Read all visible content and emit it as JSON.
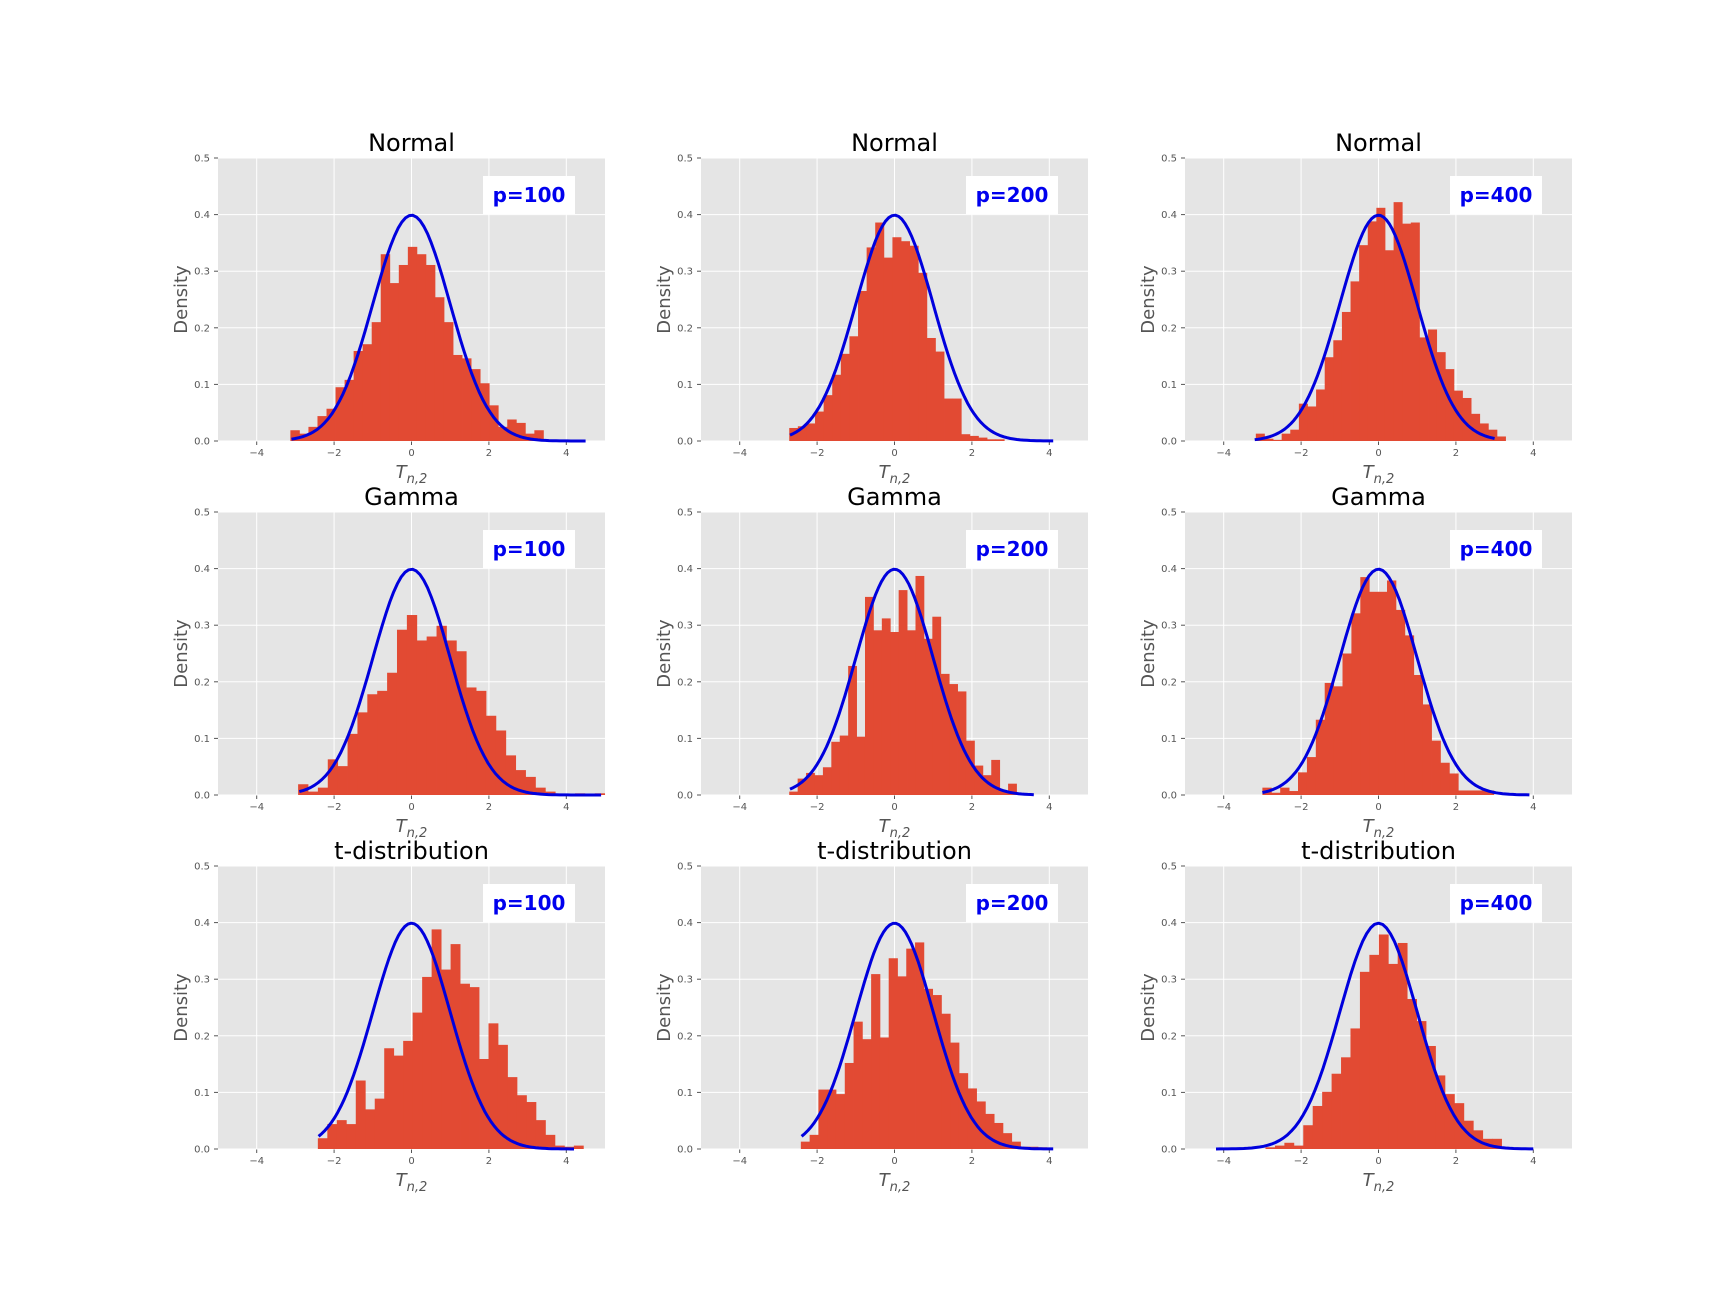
{
  "figure": {
    "background": "#ffffff",
    "panel_background": "#e5e5e5",
    "grid_color": "#ffffff",
    "bar_color": "#e24a33",
    "curve_color": "#0000dd",
    "annotation_color": "#0000ee"
  },
  "chart_data": [
    {
      "type": "bar",
      "title": "Normal",
      "annotation": "p=100",
      "xlabel": "T_{n,2}",
      "ylabel": "Density",
      "xlim": [
        -5,
        5
      ],
      "ylim": [
        0,
        0.5
      ],
      "xticks": [
        "−4",
        "−2",
        "0",
        "2",
        "4"
      ],
      "yticks": [
        "0.0",
        "0.1",
        "0.2",
        "0.3",
        "0.4",
        "0.5"
      ],
      "bins": {
        "start": -3.13,
        "width": 0.2335,
        "values": [
          0.019,
          0.013,
          0.025,
          0.044,
          0.057,
          0.095,
          0.108,
          0.159,
          0.171,
          0.21,
          0.33,
          0.279,
          0.311,
          0.343,
          0.33,
          0.311,
          0.254,
          0.21,
          0.152,
          0.146,
          0.127,
          0.102,
          0.063,
          0.025,
          0.038,
          0.032,
          0.013,
          0.019
        ]
      },
      "curve": {
        "x_start": -3.1,
        "x_end": 4.5,
        "mean": 0,
        "sd": 1
      }
    },
    {
      "type": "bar",
      "title": "Normal",
      "annotation": "p=200",
      "xlabel": "T_{n,2}",
      "ylabel": "Density",
      "xlim": [
        -5,
        5
      ],
      "ylim": [
        0,
        0.5
      ],
      "xticks": [
        "−4",
        "−2",
        "0",
        "2",
        "4"
      ],
      "yticks": [
        "0.0",
        "0.1",
        "0.2",
        "0.3",
        "0.4",
        "0.5"
      ],
      "bins": {
        "start": -2.72,
        "width": 0.2222,
        "values": [
          0.023,
          0.026,
          0.031,
          0.052,
          0.081,
          0.117,
          0.154,
          0.185,
          0.265,
          0.342,
          0.386,
          0.324,
          0.36,
          0.353,
          0.345,
          0.297,
          0.182,
          0.158,
          0.075,
          0.075,
          0.012,
          0.009,
          0.006,
          0.003,
          0.003
        ]
      },
      "curve": {
        "x_start": -2.7,
        "x_end": 4.1,
        "mean": 0,
        "sd": 1
      }
    },
    {
      "type": "bar",
      "title": "Normal",
      "annotation": "p=400",
      "xlabel": "T_{n,2}",
      "ylabel": "Density",
      "xlim": [
        -5,
        5
      ],
      "ylim": [
        0,
        0.5
      ],
      "xticks": [
        "−4",
        "−2",
        "0",
        "2",
        "4"
      ],
      "yticks": [
        "0.0",
        "0.1",
        "0.2",
        "0.3",
        "0.4",
        "0.5"
      ],
      "bins": {
        "start": -3.17,
        "width": 0.2225,
        "values": [
          0.013,
          0.004,
          0.002,
          0.013,
          0.02,
          0.066,
          0.061,
          0.091,
          0.148,
          0.178,
          0.228,
          0.282,
          0.346,
          0.388,
          0.412,
          0.337,
          0.422,
          0.384,
          0.386,
          0.183,
          0.197,
          0.157,
          0.127,
          0.089,
          0.076,
          0.048,
          0.031,
          0.02,
          0.008
        ]
      },
      "curve": {
        "x_start": -3.2,
        "x_end": 3.0,
        "mean": 0,
        "sd": 1
      }
    },
    {
      "type": "bar",
      "title": "Gamma",
      "annotation": "p=100",
      "xlabel": "T_{n,2}",
      "ylabel": "Density",
      "xlim": [
        -5,
        5
      ],
      "ylim": [
        0,
        0.5
      ],
      "xticks": [
        "−4",
        "−2",
        "0",
        "2",
        "4"
      ],
      "yticks": [
        "0.0",
        "0.1",
        "0.2",
        "0.3",
        "0.4",
        "0.5"
      ],
      "bins": {
        "start": -2.93,
        "width": 0.2555,
        "values": [
          0.019,
          0.006,
          0.013,
          0.063,
          0.051,
          0.108,
          0.146,
          0.178,
          0.184,
          0.216,
          0.292,
          0.318,
          0.273,
          0.28,
          0.299,
          0.273,
          0.254,
          0.19,
          0.184,
          0.14,
          0.114,
          0.07,
          0.044,
          0.032,
          0.013,
          0.006,
          0.002,
          0.002,
          0.003,
          0.002,
          0.003
        ]
      },
      "curve": {
        "x_start": -2.9,
        "x_end": 4.9,
        "mean": 0,
        "sd": 1
      }
    },
    {
      "type": "bar",
      "title": "Gamma",
      "annotation": "p=200",
      "xlabel": "T_{n,2}",
      "ylabel": "Density",
      "xlim": [
        -5,
        5
      ],
      "ylim": [
        0,
        0.5
      ],
      "xticks": [
        "−4",
        "−2",
        "0",
        "2",
        "4"
      ],
      "yticks": [
        "0.0",
        "0.1",
        "0.2",
        "0.3",
        "0.4",
        "0.5"
      ],
      "bins": {
        "start": -2.72,
        "width": 0.2175,
        "values": [
          0.006,
          0.029,
          0.039,
          0.035,
          0.049,
          0.094,
          0.105,
          0.228,
          0.103,
          0.35,
          0.291,
          0.312,
          0.288,
          0.362,
          0.291,
          0.387,
          0.276,
          0.315,
          0.214,
          0.196,
          0.183,
          0.096,
          0.052,
          0.035,
          0.062,
          0.007,
          0.02
        ]
      },
      "curve": {
        "x_start": -2.7,
        "x_end": 3.6,
        "mean": 0,
        "sd": 1
      }
    },
    {
      "type": "bar",
      "title": "Gamma",
      "annotation": "p=400",
      "xlabel": "T_{n,2}",
      "ylabel": "Density",
      "xlim": [
        -5,
        5
      ],
      "ylim": [
        0,
        0.5
      ],
      "xticks": [
        "−4",
        "−2",
        "0",
        "2",
        "4"
      ],
      "yticks": [
        "0.0",
        "0.1",
        "0.2",
        "0.3",
        "0.4",
        "0.5"
      ],
      "bins": {
        "start": -3.0,
        "width": 0.23,
        "values": [
          0.013,
          0.004,
          0.013,
          0.007,
          0.04,
          0.067,
          0.133,
          0.198,
          0.192,
          0.25,
          0.321,
          0.385,
          0.359,
          0.359,
          0.379,
          0.327,
          0.282,
          0.212,
          0.16,
          0.096,
          0.057,
          0.038,
          0.008,
          0.008,
          0.008,
          0.008
        ]
      },
      "curve": {
        "x_start": -3.0,
        "x_end": 3.9,
        "mean": 0,
        "sd": 1
      }
    },
    {
      "type": "bar",
      "title": "t-distribution",
      "annotation": "p=100",
      "xlabel": "T_{n,2}",
      "ylabel": "Density",
      "xlim": [
        -5,
        5
      ],
      "ylim": [
        0,
        0.5
      ],
      "xticks": [
        "−4",
        "−2",
        "0",
        "2",
        "4"
      ],
      "yticks": [
        "0.0",
        "0.1",
        "0.2",
        "0.3",
        "0.4",
        "0.5"
      ],
      "bins": {
        "start": -2.42,
        "width": 0.245,
        "values": [
          0.019,
          0.044,
          0.051,
          0.044,
          0.121,
          0.07,
          0.089,
          0.178,
          0.165,
          0.191,
          0.241,
          0.304,
          0.388,
          0.317,
          0.362,
          0.292,
          0.286,
          0.159,
          0.222,
          0.184,
          0.127,
          0.095,
          0.083,
          0.051,
          0.025,
          0.006,
          0.004,
          0.006
        ]
      },
      "curve": {
        "x_start": -2.4,
        "x_end": 4.2,
        "mean": 0,
        "sd": 1
      }
    },
    {
      "type": "bar",
      "title": "t-distribution",
      "annotation": "p=200",
      "xlabel": "T_{n,2}",
      "ylabel": "Density",
      "xlim": [
        -5,
        5
      ],
      "ylim": [
        0,
        0.5
      ],
      "xticks": [
        "−4",
        "−2",
        "0",
        "2",
        "4"
      ],
      "yticks": [
        "0.0",
        "0.1",
        "0.2",
        "0.3",
        "0.4",
        "0.5"
      ],
      "bins": {
        "start": -2.42,
        "width": 0.227,
        "values": [
          0.013,
          0.025,
          0.105,
          0.105,
          0.097,
          0.152,
          0.225,
          0.194,
          0.309,
          0.197,
          0.337,
          0.305,
          0.354,
          0.365,
          0.283,
          0.272,
          0.239,
          0.188,
          0.134,
          0.107,
          0.084,
          0.062,
          0.046,
          0.028,
          0.013,
          0.004,
          0.004,
          0.003
        ]
      },
      "curve": {
        "x_start": -2.4,
        "x_end": 4.1,
        "mean": 0,
        "sd": 1
      }
    },
    {
      "type": "bar",
      "title": "t-distribution",
      "annotation": "p=400",
      "xlabel": "T_{n,2}",
      "ylabel": "Density",
      "xlim": [
        -5,
        5
      ],
      "ylim": [
        0,
        0.5
      ],
      "xticks": [
        "−4",
        "−2",
        "0",
        "2",
        "4"
      ],
      "yticks": [
        "0.0",
        "0.1",
        "0.2",
        "0.3",
        "0.4",
        "0.5"
      ],
      "bins": {
        "start": -2.92,
        "width": 0.244,
        "values": [
          0.003,
          0.006,
          0.011,
          0.006,
          0.042,
          0.076,
          0.101,
          0.133,
          0.162,
          0.213,
          0.313,
          0.343,
          0.379,
          0.327,
          0.364,
          0.265,
          0.226,
          0.182,
          0.13,
          0.097,
          0.081,
          0.05,
          0.033,
          0.018,
          0.018,
          0.003
        ]
      },
      "curve": {
        "x_start": -4.2,
        "x_end": 4.0,
        "mean": 0,
        "sd": 1
      }
    }
  ]
}
